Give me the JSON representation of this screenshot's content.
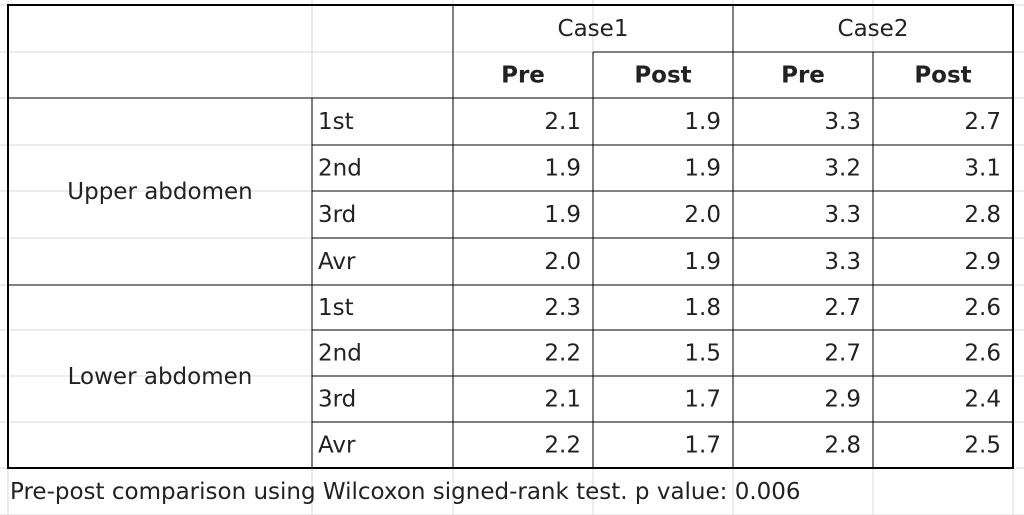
{
  "table": {
    "groups": [
      "Case1",
      "Case2"
    ],
    "columns": [
      "Pre",
      "Post",
      "Pre",
      "Post"
    ],
    "sections": [
      {
        "label": "Upper abdomen",
        "rows": [
          {
            "label": "1st",
            "values": [
              "2.1",
              "1.9",
              "3.3",
              "2.7"
            ]
          },
          {
            "label": "2nd",
            "values": [
              "1.9",
              "1.9",
              "3.2",
              "3.1"
            ]
          },
          {
            "label": "3rd",
            "values": [
              "1.9",
              "2.0",
              "3.3",
              "2.8"
            ]
          },
          {
            "label": "Avr",
            "values": [
              "2.0",
              "1.9",
              "3.3",
              "2.9"
            ]
          }
        ]
      },
      {
        "label": "Lower abdomen",
        "rows": [
          {
            "label": "1st",
            "values": [
              "2.3",
              "1.8",
              "2.7",
              "2.6"
            ]
          },
          {
            "label": "2nd",
            "values": [
              "2.2",
              "1.5",
              "2.7",
              "2.6"
            ]
          },
          {
            "label": "3rd",
            "values": [
              "2.1",
              "1.7",
              "2.9",
              "2.4"
            ]
          },
          {
            "label": "Avr",
            "values": [
              "2.2",
              "1.7",
              "2.8",
              "2.5"
            ]
          }
        ]
      }
    ]
  },
  "footnote": "Pre-post comparison using Wilcoxon signed-rank test. p value: 0.006"
}
